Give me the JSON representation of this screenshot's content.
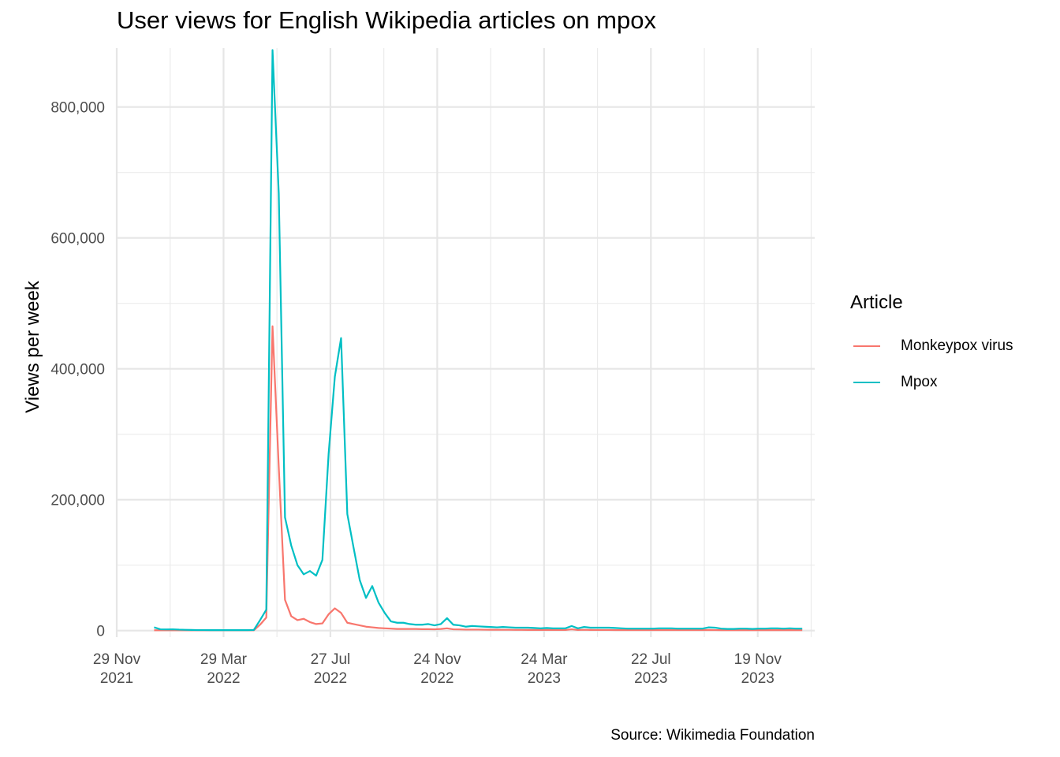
{
  "chart_data": {
    "type": "line",
    "title": "User views for English Wikipedia articles on mpox",
    "xlabel": "",
    "ylabel": "Views per week",
    "caption": "Source: Wikimedia Foundation",
    "legend_title": "Article",
    "legend_position": "right",
    "grid": true,
    "ylim": [
      -10000,
      890000
    ],
    "xlim": [
      "2021-11-29",
      "2024-01-22"
    ],
    "y_ticks": [
      {
        "value": 0,
        "label": "0"
      },
      {
        "value": 200000,
        "label": "200,000"
      },
      {
        "value": 400000,
        "label": "400,000"
      },
      {
        "value": 600000,
        "label": "600,000"
      },
      {
        "value": 800000,
        "label": "800,000"
      }
    ],
    "x_ticks": [
      {
        "value": "2021-11-29",
        "label": [
          "29 Nov",
          "2021"
        ]
      },
      {
        "value": "2022-03-29",
        "label": [
          "29 Mar",
          "2022"
        ]
      },
      {
        "value": "2022-07-27",
        "label": [
          "27 Jul",
          "2022"
        ]
      },
      {
        "value": "2022-11-24",
        "label": [
          "24 Nov",
          "2022"
        ]
      },
      {
        "value": "2023-03-24",
        "label": [
          "24 Mar",
          "2023"
        ]
      },
      {
        "value": "2023-07-22",
        "label": [
          "22 Jul",
          "2023"
        ]
      },
      {
        "value": "2023-11-19",
        "label": [
          "19 Nov",
          "2023"
        ]
      }
    ],
    "series": [
      {
        "name": "Monkeypox virus",
        "color": "#F8766D",
        "points": [
          [
            "2022-01-10",
            500
          ],
          [
            "2022-01-17",
            500
          ],
          [
            "2022-01-24",
            500
          ],
          [
            "2022-01-31",
            500
          ],
          [
            "2022-02-07",
            500
          ],
          [
            "2022-02-14",
            500
          ],
          [
            "2022-02-21",
            500
          ],
          [
            "2022-02-28",
            500
          ],
          [
            "2022-03-07",
            500
          ],
          [
            "2022-03-14",
            500
          ],
          [
            "2022-03-21",
            500
          ],
          [
            "2022-03-28",
            500
          ],
          [
            "2022-04-04",
            500
          ],
          [
            "2022-04-11",
            500
          ],
          [
            "2022-04-18",
            500
          ],
          [
            "2022-04-25",
            500
          ],
          [
            "2022-05-02",
            500
          ],
          [
            "2022-05-09",
            9000
          ],
          [
            "2022-05-16",
            20000
          ],
          [
            "2022-05-23",
            465000
          ],
          [
            "2022-05-30",
            250000
          ],
          [
            "2022-06-06",
            47000
          ],
          [
            "2022-06-13",
            22000
          ],
          [
            "2022-06-20",
            16000
          ],
          [
            "2022-06-27",
            18000
          ],
          [
            "2022-07-04",
            13000
          ],
          [
            "2022-07-11",
            10000
          ],
          [
            "2022-07-18",
            11000
          ],
          [
            "2022-07-25",
            25000
          ],
          [
            "2022-08-01",
            34000
          ],
          [
            "2022-08-08",
            27000
          ],
          [
            "2022-08-15",
            12000
          ],
          [
            "2022-08-22",
            10000
          ],
          [
            "2022-08-29",
            8000
          ],
          [
            "2022-09-05",
            6000
          ],
          [
            "2022-09-12",
            5000
          ],
          [
            "2022-09-19",
            4000
          ],
          [
            "2022-09-26",
            3500
          ],
          [
            "2022-10-03",
            3000
          ],
          [
            "2022-10-10",
            2500
          ],
          [
            "2022-10-17",
            2500
          ],
          [
            "2022-10-24",
            2500
          ],
          [
            "2022-10-31",
            2500
          ],
          [
            "2022-11-07",
            2200
          ],
          [
            "2022-11-14",
            2200
          ],
          [
            "2022-11-21",
            2000
          ],
          [
            "2022-11-28",
            2500
          ],
          [
            "2022-12-05",
            3500
          ],
          [
            "2022-12-12",
            2000
          ],
          [
            "2022-12-19",
            1800
          ],
          [
            "2022-12-26",
            1500
          ],
          [
            "2023-01-02",
            1500
          ],
          [
            "2023-01-09",
            1500
          ],
          [
            "2023-01-16",
            1400
          ],
          [
            "2023-01-23",
            1300
          ],
          [
            "2023-01-30",
            1300
          ],
          [
            "2023-02-06",
            1200
          ],
          [
            "2023-02-13",
            1200
          ],
          [
            "2023-02-20",
            1100
          ],
          [
            "2023-02-27",
            1100
          ],
          [
            "2023-03-06",
            1000
          ],
          [
            "2023-03-13",
            1000
          ],
          [
            "2023-03-20",
            1000
          ],
          [
            "2023-03-27",
            1000
          ],
          [
            "2023-04-03",
            1000
          ],
          [
            "2023-04-10",
            900
          ],
          [
            "2023-04-17",
            900
          ],
          [
            "2023-04-24",
            2000
          ],
          [
            "2023-05-01",
            1000
          ],
          [
            "2023-05-08",
            1200
          ],
          [
            "2023-05-15",
            1000
          ],
          [
            "2023-05-22",
            900
          ],
          [
            "2023-05-29",
            900
          ],
          [
            "2023-06-05",
            900
          ],
          [
            "2023-06-12",
            800
          ],
          [
            "2023-06-19",
            800
          ],
          [
            "2023-06-26",
            800
          ],
          [
            "2023-07-03",
            800
          ],
          [
            "2023-07-10",
            800
          ],
          [
            "2023-07-17",
            800
          ],
          [
            "2023-07-24",
            800
          ],
          [
            "2023-07-31",
            800
          ],
          [
            "2023-08-07",
            800
          ],
          [
            "2023-08-14",
            800
          ],
          [
            "2023-08-21",
            800
          ],
          [
            "2023-08-28",
            800
          ],
          [
            "2023-09-04",
            800
          ],
          [
            "2023-09-11",
            800
          ],
          [
            "2023-09-18",
            800
          ],
          [
            "2023-09-25",
            1000
          ],
          [
            "2023-10-02",
            800
          ],
          [
            "2023-10-09",
            700
          ],
          [
            "2023-10-16",
            700
          ],
          [
            "2023-10-23",
            700
          ],
          [
            "2023-10-30",
            700
          ],
          [
            "2023-11-06",
            700
          ],
          [
            "2023-11-13",
            700
          ],
          [
            "2023-11-20",
            700
          ],
          [
            "2023-11-27",
            700
          ],
          [
            "2023-12-04",
            700
          ],
          [
            "2023-12-11",
            700
          ],
          [
            "2023-12-18",
            700
          ],
          [
            "2023-12-25",
            700
          ],
          [
            "2024-01-01",
            700
          ],
          [
            "2024-01-08",
            700
          ]
        ]
      },
      {
        "name": "Mpox",
        "color": "#00BFC4",
        "points": [
          [
            "2022-01-10",
            5000
          ],
          [
            "2022-01-17",
            2000
          ],
          [
            "2022-01-24",
            1800
          ],
          [
            "2022-01-31",
            2000
          ],
          [
            "2022-02-07",
            1500
          ],
          [
            "2022-02-14",
            1200
          ],
          [
            "2022-02-21",
            1000
          ],
          [
            "2022-02-28",
            800
          ],
          [
            "2022-03-07",
            800
          ],
          [
            "2022-03-14",
            700
          ],
          [
            "2022-03-21",
            700
          ],
          [
            "2022-03-28",
            700
          ],
          [
            "2022-04-04",
            700
          ],
          [
            "2022-04-11",
            700
          ],
          [
            "2022-04-18",
            700
          ],
          [
            "2022-04-25",
            700
          ],
          [
            "2022-05-02",
            1000
          ],
          [
            "2022-05-09",
            16000
          ],
          [
            "2022-05-16",
            32000
          ],
          [
            "2022-05-23",
            887000
          ],
          [
            "2022-05-30",
            668000
          ],
          [
            "2022-06-06",
            173000
          ],
          [
            "2022-06-13",
            130000
          ],
          [
            "2022-06-20",
            100000
          ],
          [
            "2022-06-27",
            86000
          ],
          [
            "2022-07-04",
            91000
          ],
          [
            "2022-07-11",
            84000
          ],
          [
            "2022-07-18",
            108000
          ],
          [
            "2022-07-25",
            270000
          ],
          [
            "2022-08-01",
            388000
          ],
          [
            "2022-08-08",
            447000
          ],
          [
            "2022-08-15",
            178000
          ],
          [
            "2022-08-22",
            127000
          ],
          [
            "2022-08-29",
            77000
          ],
          [
            "2022-09-05",
            50000
          ],
          [
            "2022-09-12",
            68000
          ],
          [
            "2022-09-19",
            43000
          ],
          [
            "2022-09-26",
            27000
          ],
          [
            "2022-10-03",
            14000
          ],
          [
            "2022-10-10",
            12000
          ],
          [
            "2022-10-17",
            12000
          ],
          [
            "2022-10-24",
            10000
          ],
          [
            "2022-10-31",
            9000
          ],
          [
            "2022-11-07",
            9000
          ],
          [
            "2022-11-14",
            10000
          ],
          [
            "2022-11-21",
            8000
          ],
          [
            "2022-11-28",
            10000
          ],
          [
            "2022-12-05",
            19000
          ],
          [
            "2022-12-12",
            9000
          ],
          [
            "2022-12-19",
            8000
          ],
          [
            "2022-12-26",
            6000
          ],
          [
            "2023-01-02",
            7000
          ],
          [
            "2023-01-09",
            6500
          ],
          [
            "2023-01-16",
            6000
          ],
          [
            "2023-01-23",
            5500
          ],
          [
            "2023-01-30",
            5000
          ],
          [
            "2023-02-06",
            5500
          ],
          [
            "2023-02-13",
            5000
          ],
          [
            "2023-02-20",
            4500
          ],
          [
            "2023-02-27",
            4500
          ],
          [
            "2023-03-06",
            4500
          ],
          [
            "2023-03-13",
            4000
          ],
          [
            "2023-03-20",
            3500
          ],
          [
            "2023-03-27",
            4000
          ],
          [
            "2023-04-03",
            3500
          ],
          [
            "2023-04-10",
            3500
          ],
          [
            "2023-04-17",
            3500
          ],
          [
            "2023-04-24",
            7000
          ],
          [
            "2023-05-01",
            3500
          ],
          [
            "2023-05-08",
            5500
          ],
          [
            "2023-05-15",
            4500
          ],
          [
            "2023-05-22",
            4500
          ],
          [
            "2023-05-29",
            4500
          ],
          [
            "2023-06-05",
            4500
          ],
          [
            "2023-06-12",
            4000
          ],
          [
            "2023-06-19",
            3500
          ],
          [
            "2023-06-26",
            3000
          ],
          [
            "2023-07-03",
            3000
          ],
          [
            "2023-07-10",
            3000
          ],
          [
            "2023-07-17",
            3000
          ],
          [
            "2023-07-24",
            3000
          ],
          [
            "2023-07-31",
            3500
          ],
          [
            "2023-08-07",
            3500
          ],
          [
            "2023-08-14",
            3500
          ],
          [
            "2023-08-21",
            3000
          ],
          [
            "2023-08-28",
            3000
          ],
          [
            "2023-09-04",
            3000
          ],
          [
            "2023-09-11",
            3000
          ],
          [
            "2023-09-18",
            3000
          ],
          [
            "2023-09-25",
            5000
          ],
          [
            "2023-10-02",
            4500
          ],
          [
            "2023-10-09",
            3000
          ],
          [
            "2023-10-16",
            2500
          ],
          [
            "2023-10-23",
            2500
          ],
          [
            "2023-10-30",
            3000
          ],
          [
            "2023-11-06",
            3000
          ],
          [
            "2023-11-13",
            2500
          ],
          [
            "2023-11-20",
            3000
          ],
          [
            "2023-11-27",
            3000
          ],
          [
            "2023-12-04",
            3500
          ],
          [
            "2023-12-11",
            3500
          ],
          [
            "2023-12-18",
            3000
          ],
          [
            "2023-12-25",
            3500
          ],
          [
            "2024-01-01",
            3000
          ],
          [
            "2024-01-08",
            3000
          ]
        ]
      }
    ]
  }
}
